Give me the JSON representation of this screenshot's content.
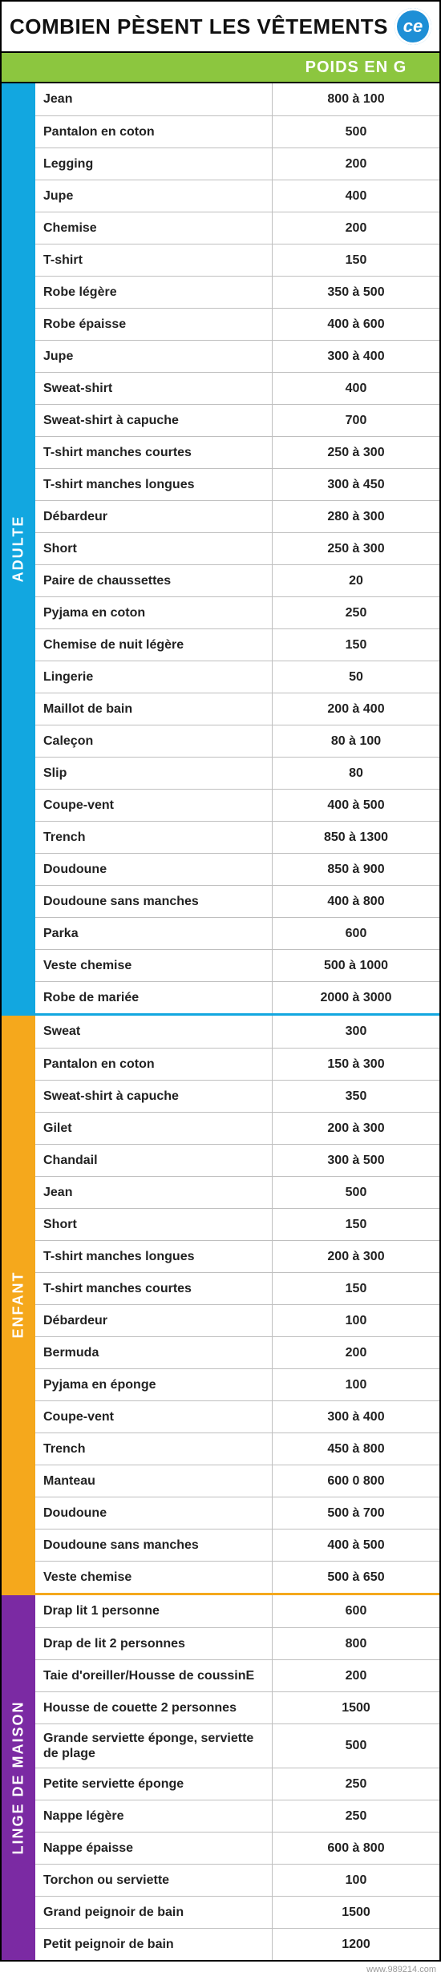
{
  "title": "COMBIEN PÈSENT LES VÊTEMENTS",
  "logo_text": "ce",
  "header_label": "POIDS EN G",
  "footer": "www.989214.com",
  "colors": {
    "header_bg": "#8cc63f",
    "adulte": "#12a7e0",
    "enfant": "#f5a81c",
    "linge": "#7b2aa3",
    "divider_adulte_enfant": "#12a7e0",
    "divider_enfant_linge": "#f5a81c"
  },
  "fonts": {
    "title_size": 26,
    "header_size": 20,
    "cell_size": 16,
    "sidebar_size": 18
  },
  "sections": [
    {
      "id": "adulte",
      "label": "ADULTE",
      "color": "#12a7e0",
      "rows": [
        {
          "name": "Jean",
          "weight": "800 à 100"
        },
        {
          "name": "Pantalon en coton",
          "weight": "500"
        },
        {
          "name": "Legging",
          "weight": "200"
        },
        {
          "name": "Jupe",
          "weight": "400"
        },
        {
          "name": "Chemise",
          "weight": "200"
        },
        {
          "name": "T-shirt",
          "weight": "150"
        },
        {
          "name": "Robe légère",
          "weight": "350 à 500"
        },
        {
          "name": "Robe épaisse",
          "weight": "400 à 600"
        },
        {
          "name": "Jupe",
          "weight": "300 à 400"
        },
        {
          "name": "Sweat-shirt",
          "weight": "400"
        },
        {
          "name": "Sweat-shirt à capuche",
          "weight": "700"
        },
        {
          "name": "T-shirt manches courtes",
          "weight": "250 à 300"
        },
        {
          "name": "T-shirt manches longues",
          "weight": "300 à 450"
        },
        {
          "name": "Débardeur",
          "weight": "280 à 300"
        },
        {
          "name": "Short",
          "weight": "250 à 300"
        },
        {
          "name": "Paire de chaussettes",
          "weight": "20"
        },
        {
          "name": "Pyjama en coton",
          "weight": "250"
        },
        {
          "name": "Chemise de nuit légère",
          "weight": "150"
        },
        {
          "name": "Lingerie",
          "weight": "50"
        },
        {
          "name": "Maillot de bain",
          "weight": "200 à 400"
        },
        {
          "name": "Caleçon",
          "weight": "80 à 100"
        },
        {
          "name": "Slip",
          "weight": "80"
        },
        {
          "name": "Coupe-vent",
          "weight": "400 à 500"
        },
        {
          "name": "Trench",
          "weight": "850 à 1300"
        },
        {
          "name": "Doudoune",
          "weight": "850 à 900"
        },
        {
          "name": "Doudoune sans manches",
          "weight": "400 à 800"
        },
        {
          "name": "Parka",
          "weight": "600"
        },
        {
          "name": "Veste chemise",
          "weight": "500 à 1000"
        },
        {
          "name": "Robe de mariée",
          "weight": "2000 à 3000"
        }
      ]
    },
    {
      "id": "enfant",
      "label": "ENFANT",
      "color": "#f5a81c",
      "rows": [
        {
          "name": "Sweat",
          "weight": "300"
        },
        {
          "name": "Pantalon en coton",
          "weight": "150 à 300"
        },
        {
          "name": "Sweat-shirt à capuche",
          "weight": "350"
        },
        {
          "name": "Gilet",
          "weight": "200 à 300"
        },
        {
          "name": "Chandail",
          "weight": "300 à 500"
        },
        {
          "name": "Jean",
          "weight": "500"
        },
        {
          "name": "Short",
          "weight": "150"
        },
        {
          "name": "T-shirt manches longues",
          "weight": "200 à 300"
        },
        {
          "name": "T-shirt manches courtes",
          "weight": "150"
        },
        {
          "name": "Débardeur",
          "weight": "100"
        },
        {
          "name": "Bermuda",
          "weight": "200"
        },
        {
          "name": "Pyjama en éponge",
          "weight": "100"
        },
        {
          "name": "Coupe-vent",
          "weight": "300 à 400"
        },
        {
          "name": "Trench",
          "weight": "450 à 800"
        },
        {
          "name": "Manteau",
          "weight": "600 0 800"
        },
        {
          "name": "Doudoune",
          "weight": "500 à 700"
        },
        {
          "name": "Doudoune sans manches",
          "weight": "400 à 500"
        },
        {
          "name": "Veste chemise",
          "weight": "500 à 650"
        }
      ]
    },
    {
      "id": "linge",
      "label": "LINGE DE MAISON",
      "color": "#7b2aa3",
      "rows": [
        {
          "name": "Drap lit 1 personne",
          "weight": "600"
        },
        {
          "name": "Drap de lit 2 personnes",
          "weight": "800"
        },
        {
          "name": "Taie d'oreiller/Housse de coussinE",
          "weight": "200"
        },
        {
          "name": "Housse de couette 2 personnes",
          "weight": "1500"
        },
        {
          "name": "Grande serviette éponge, serviette de plage",
          "weight": "500"
        },
        {
          "name": "Petite serviette éponge",
          "weight": "250"
        },
        {
          "name": "Nappe légère",
          "weight": "250"
        },
        {
          "name": "Nappe épaisse",
          "weight": "600 à 800"
        },
        {
          "name": "Torchon ou serviette",
          "weight": "100"
        },
        {
          "name": "Grand peignoir de bain",
          "weight": "1500"
        },
        {
          "name": "Petit peignoir de bain",
          "weight": "1200"
        }
      ]
    }
  ]
}
